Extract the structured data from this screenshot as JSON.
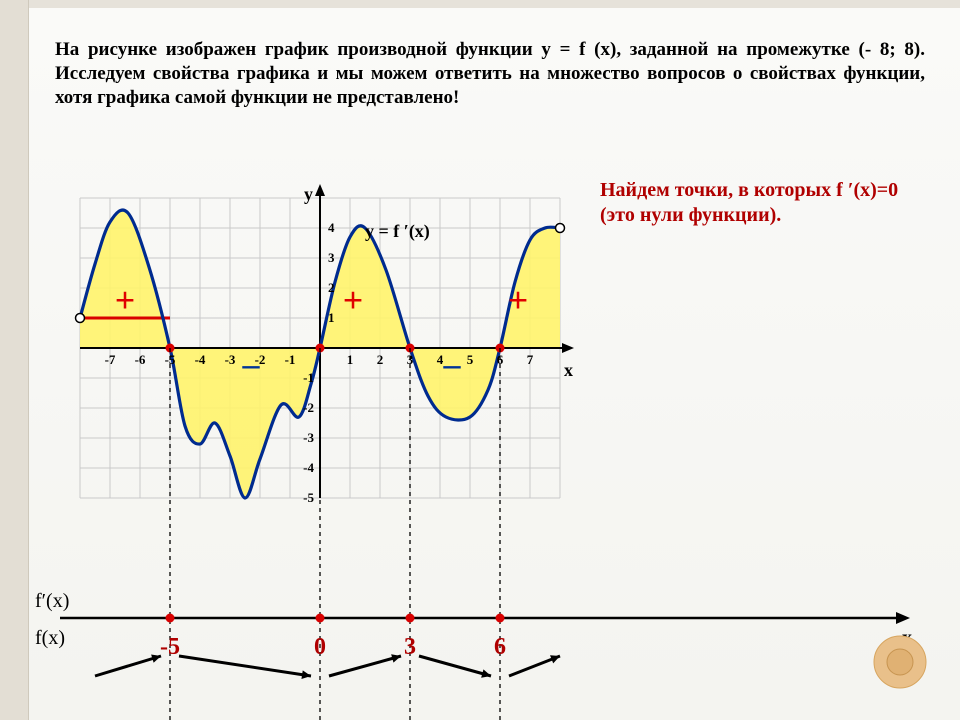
{
  "main_text": "На рисунке изображен график производной функции y = f (x), заданной на промежутке (- 8; 8). Исследуем свойства графика и мы можем ответить на множество вопросов о свойствах функции, хотя графика самой функции не представлено!",
  "side_text": "Найдем точки, в которых f ′(x)=0 (это нули функции).",
  "fn_label_top": "f′(x)",
  "fn_label_bottom": "f(x)",
  "axis_x": "x",
  "axis_y": "y",
  "curve_label": "y = f ′(x)",
  "chart": {
    "type": "line",
    "xlim": [
      -8,
      8
    ],
    "ylim": [
      -5,
      5
    ],
    "xticks": [
      -7,
      -6,
      -5,
      -4,
      -3,
      -2,
      -1,
      1,
      2,
      3,
      4,
      5,
      6,
      7
    ],
    "yticks": [
      -5,
      -4,
      -3,
      -2,
      -1,
      1,
      2,
      3,
      4
    ],
    "grid_color": "#c9c9c9",
    "axis_color": "#000000",
    "curve_color": "#002b8f",
    "pos_fill": "#fff36b",
    "neg_fill": "#c6e7f2",
    "zero_marker_color": "#d90000",
    "open_marker_fill": "#ffffff",
    "open_marker_stroke": "#000000",
    "zeros": [
      -5,
      0,
      3,
      6
    ],
    "accent_line_y": 1,
    "accent_line_color": "#d90000",
    "accent_line_x_range": [
      -8,
      -5
    ],
    "points": [
      [
        -8.0,
        1.0
      ],
      [
        -7.5,
        2.8
      ],
      [
        -7.0,
        4.2
      ],
      [
        -6.4,
        4.5
      ],
      [
        -5.7,
        2.7
      ],
      [
        -5.0,
        0.0
      ],
      [
        -4.5,
        -2.6
      ],
      [
        -4.0,
        -3.2
      ],
      [
        -3.5,
        -2.5
      ],
      [
        -3.0,
        -3.6
      ],
      [
        -2.5,
        -5.0
      ],
      [
        -2.0,
        -3.7
      ],
      [
        -1.3,
        -1.9
      ],
      [
        -0.7,
        -2.3
      ],
      [
        -0.3,
        -1.2
      ],
      [
        0.0,
        0.0
      ],
      [
        0.5,
        2.2
      ],
      [
        1.0,
        3.7
      ],
      [
        1.5,
        4.0
      ],
      [
        2.2,
        2.6
      ],
      [
        3.0,
        0.0
      ],
      [
        3.6,
        -1.6
      ],
      [
        4.2,
        -2.3
      ],
      [
        5.0,
        -2.3
      ],
      [
        5.6,
        -1.4
      ],
      [
        6.0,
        0.0
      ],
      [
        6.5,
        2.2
      ],
      [
        7.0,
        3.6
      ],
      [
        7.5,
        4.0
      ],
      [
        8.0,
        4.0
      ]
    ],
    "plus_positions": [
      [
        -6.5,
        1.2
      ],
      [
        1.1,
        1.2
      ],
      [
        6.6,
        1.2
      ]
    ],
    "minus_positions": [
      [
        -2.3,
        -0.9
      ],
      [
        4.4,
        -0.9
      ]
    ]
  },
  "bottom": {
    "axis_color": "#000000",
    "zeros": [
      -5,
      0,
      3,
      6
    ],
    "zero_labels": [
      "-5",
      "0",
      "3",
      "6"
    ],
    "zero_label_color": "#b00000",
    "arrow_color": "#000000",
    "arrows": [
      {
        "from": -7.5,
        "to": -5.3,
        "dir": "up"
      },
      {
        "from": -4.7,
        "to": -0.3,
        "dir": "down"
      },
      {
        "from": 0.3,
        "to": 2.7,
        "dir": "up"
      },
      {
        "from": 3.3,
        "to": 5.7,
        "dir": "down"
      },
      {
        "from": 6.3,
        "to": 8.0,
        "dir": "up"
      }
    ]
  }
}
